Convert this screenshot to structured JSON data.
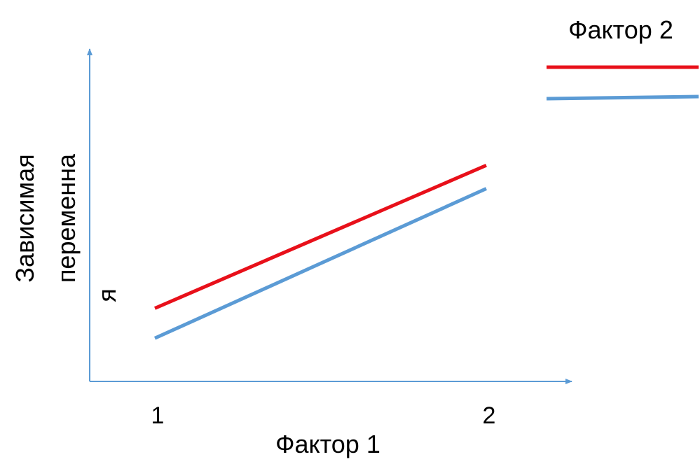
{
  "chart_data": {
    "type": "line",
    "title": "",
    "xlabel": "Фактор 1",
    "ylabel_lines": [
      "Зависимая",
      "переменна",
      "я"
    ],
    "categories": [
      "1",
      "2"
    ],
    "series": [
      {
        "values": [
          2.2,
          6.5
        ],
        "color": "#e8101a"
      },
      {
        "values": [
          1.3,
          5.8
        ],
        "color": "#5b9bd5"
      }
    ],
    "ylim": [
      0,
      10
    ],
    "grid": false,
    "legend": {
      "title": "Фактор 2",
      "placement": "top-right"
    }
  }
}
